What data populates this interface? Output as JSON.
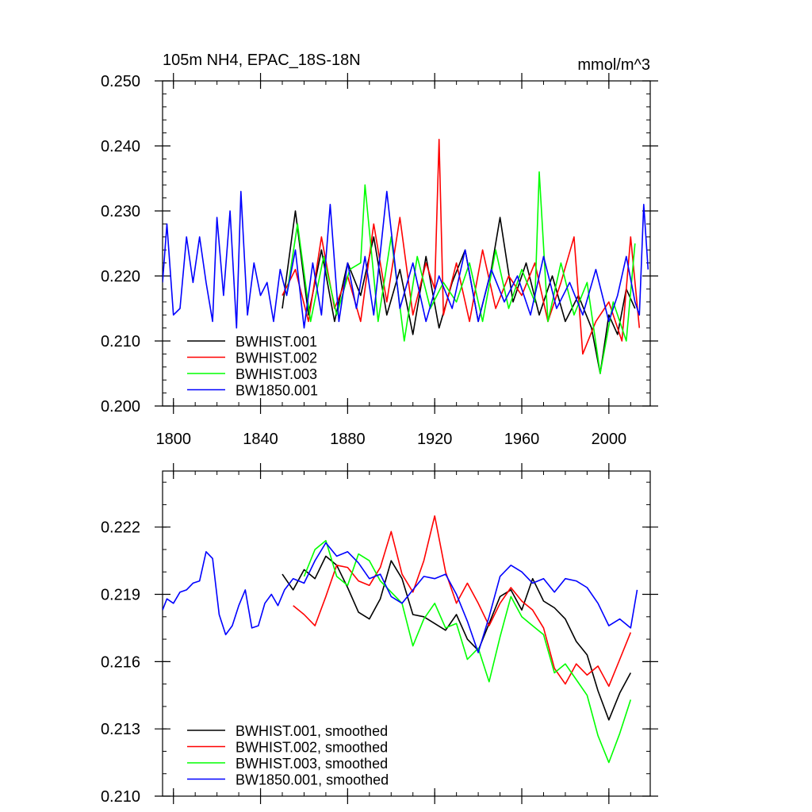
{
  "chart_data": [
    {
      "type": "line",
      "title": "105m NH4, EPAC_18S-18N",
      "units": "mmol/m^3",
      "xlabel": "",
      "ylabel": "",
      "xlim": [
        1795,
        2019
      ],
      "ylim": [
        0.2,
        0.25
      ],
      "xticks": [
        1800,
        1840,
        1880,
        1920,
        1960,
        2000
      ],
      "xtick_labels": [
        "1800",
        "1840",
        "1880",
        "1920",
        "1960",
        "2000"
      ],
      "yticks": [
        0.2,
        0.21,
        0.22,
        0.23,
        0.24,
        0.25
      ],
      "ytick_labels": [
        "0.200",
        "0.210",
        "0.220",
        "0.230",
        "0.240",
        "0.250"
      ],
      "legend_position": "bottom-left",
      "series": [
        {
          "name": "BWHIST.001",
          "color": "#000000",
          "x": [
            1850,
            1856,
            1862,
            1868,
            1874,
            1880,
            1886,
            1892,
            1898,
            1904,
            1910,
            1916,
            1922,
            1928,
            1934,
            1940,
            1946,
            1950,
            1956,
            1962,
            1968,
            1974,
            1980,
            1986,
            1992,
            1996,
            2000,
            2004,
            2008,
            2012
          ],
          "values": [
            0.215,
            0.23,
            0.214,
            0.224,
            0.213,
            0.222,
            0.217,
            0.226,
            0.214,
            0.221,
            0.211,
            0.223,
            0.212,
            0.219,
            0.224,
            0.213,
            0.221,
            0.229,
            0.216,
            0.222,
            0.214,
            0.22,
            0.213,
            0.217,
            0.212,
            0.205,
            0.214,
            0.211,
            0.218,
            0.215
          ]
        },
        {
          "name": "BWHIST.002",
          "color": "#ff0000",
          "x": [
            1850,
            1856,
            1862,
            1868,
            1874,
            1880,
            1886,
            1892,
            1898,
            1904,
            1910,
            1916,
            1920,
            1922,
            1924,
            1930,
            1936,
            1942,
            1948,
            1954,
            1960,
            1966,
            1972,
            1978,
            1984,
            1988,
            1994,
            2000,
            2006,
            2010,
            2014
          ],
          "values": [
            0.217,
            0.221,
            0.213,
            0.226,
            0.215,
            0.22,
            0.213,
            0.228,
            0.216,
            0.229,
            0.214,
            0.222,
            0.218,
            0.241,
            0.214,
            0.222,
            0.213,
            0.224,
            0.215,
            0.22,
            0.217,
            0.222,
            0.213,
            0.219,
            0.226,
            0.208,
            0.213,
            0.216,
            0.21,
            0.226,
            0.212
          ]
        },
        {
          "name": "BWHIST.003",
          "color": "#00ff00",
          "x": [
            1852,
            1857,
            1863,
            1869,
            1875,
            1881,
            1886,
            1888,
            1894,
            1900,
            1906,
            1912,
            1918,
            1924,
            1930,
            1936,
            1942,
            1948,
            1954,
            1960,
            1966,
            1968,
            1972,
            1978,
            1984,
            1990,
            1996,
            2002,
            2008,
            2012
          ],
          "values": [
            0.217,
            0.228,
            0.213,
            0.223,
            0.214,
            0.221,
            0.222,
            0.234,
            0.213,
            0.226,
            0.21,
            0.223,
            0.215,
            0.219,
            0.216,
            0.222,
            0.213,
            0.224,
            0.215,
            0.221,
            0.216,
            0.236,
            0.213,
            0.222,
            0.214,
            0.219,
            0.205,
            0.216,
            0.21,
            0.225
          ]
        },
        {
          "name": "BW1850.001",
          "color": "#0000ff",
          "x": [
            1795,
            1797,
            1800,
            1803,
            1806,
            1809,
            1812,
            1815,
            1818,
            1820,
            1823,
            1826,
            1829,
            1831,
            1834,
            1837,
            1840,
            1843,
            1846,
            1849,
            1852,
            1856,
            1860,
            1864,
            1868,
            1872,
            1876,
            1880,
            1884,
            1888,
            1892,
            1898,
            1904,
            1910,
            1916,
            1922,
            1928,
            1934,
            1940,
            1946,
            1952,
            1958,
            1964,
            1970,
            1976,
            1982,
            1988,
            1994,
            2000,
            2004,
            2008,
            2012,
            2014,
            2016,
            2018
          ],
          "values": [
            0.219,
            0.228,
            0.214,
            0.215,
            0.226,
            0.219,
            0.226,
            0.219,
            0.213,
            0.229,
            0.217,
            0.23,
            0.212,
            0.233,
            0.214,
            0.222,
            0.217,
            0.219,
            0.213,
            0.221,
            0.217,
            0.224,
            0.212,
            0.222,
            0.214,
            0.231,
            0.213,
            0.222,
            0.215,
            0.223,
            0.214,
            0.233,
            0.215,
            0.222,
            0.213,
            0.22,
            0.215,
            0.224,
            0.213,
            0.221,
            0.216,
            0.22,
            0.214,
            0.223,
            0.215,
            0.219,
            0.214,
            0.221,
            0.213,
            0.217,
            0.223,
            0.216,
            0.214,
            0.231,
            0.221
          ]
        }
      ]
    },
    {
      "type": "line",
      "title": "",
      "xlabel": "",
      "ylabel": "",
      "xlim": [
        1795,
        2019
      ],
      "ylim": [
        0.21,
        0.2245
      ],
      "xticks": [
        1800,
        1840,
        1880,
        1920,
        1960,
        2000
      ],
      "yticks": [
        0.21,
        0.213,
        0.216,
        0.219,
        0.222
      ],
      "ytick_labels": [
        "0.210",
        "0.213",
        "0.216",
        "0.219",
        "0.222"
      ],
      "legend_position": "bottom-left",
      "series": [
        {
          "name": "BWHIST.001, smoothed",
          "color": "#000000",
          "x": [
            1850,
            1855,
            1860,
            1865,
            1870,
            1875,
            1880,
            1885,
            1890,
            1895,
            1900,
            1905,
            1910,
            1915,
            1920,
            1925,
            1930,
            1935,
            1940,
            1945,
            1950,
            1955,
            1960,
            1965,
            1970,
            1975,
            1980,
            1985,
            1990,
            1995,
            2000,
            2005,
            2010
          ],
          "values": [
            0.2199,
            0.2192,
            0.2201,
            0.2197,
            0.2207,
            0.2203,
            0.2193,
            0.2182,
            0.2179,
            0.2188,
            0.2205,
            0.2197,
            0.2181,
            0.218,
            0.2177,
            0.2174,
            0.2181,
            0.217,
            0.2165,
            0.2177,
            0.2189,
            0.2192,
            0.2183,
            0.2197,
            0.2187,
            0.2184,
            0.2179,
            0.2169,
            0.2163,
            0.2147,
            0.2134,
            0.2146,
            0.2155
          ]
        },
        {
          "name": "BWHIST.002, smoothed",
          "color": "#ff0000",
          "x": [
            1855,
            1860,
            1865,
            1870,
            1875,
            1880,
            1885,
            1890,
            1895,
            1900,
            1905,
            1910,
            1915,
            1920,
            1925,
            1930,
            1935,
            1940,
            1945,
            1950,
            1955,
            1960,
            1965,
            1970,
            1975,
            1980,
            1985,
            1990,
            1995,
            2000,
            2005,
            2010
          ],
          "values": [
            0.2185,
            0.2181,
            0.2176,
            0.2189,
            0.2203,
            0.2202,
            0.2196,
            0.2194,
            0.2202,
            0.2218,
            0.2199,
            0.2191,
            0.2205,
            0.2225,
            0.22,
            0.2186,
            0.2195,
            0.2186,
            0.2176,
            0.2186,
            0.2193,
            0.2187,
            0.2183,
            0.2175,
            0.2157,
            0.215,
            0.2159,
            0.2154,
            0.2158,
            0.2149,
            0.2161,
            0.2173
          ]
        },
        {
          "name": "BWHIST.003, smoothed",
          "color": "#00ff00",
          "x": [
            1860,
            1865,
            1870,
            1875,
            1880,
            1885,
            1890,
            1895,
            1900,
            1905,
            1910,
            1915,
            1920,
            1925,
            1930,
            1935,
            1940,
            1945,
            1950,
            1955,
            1960,
            1965,
            1970,
            1975,
            1980,
            1985,
            1990,
            1995,
            2000,
            2005,
            2010
          ],
          "values": [
            0.2198,
            0.221,
            0.2214,
            0.2198,
            0.2194,
            0.2208,
            0.2205,
            0.2196,
            0.2191,
            0.2186,
            0.2167,
            0.2179,
            0.2186,
            0.2175,
            0.2177,
            0.2161,
            0.2166,
            0.2151,
            0.2171,
            0.2189,
            0.218,
            0.2176,
            0.2172,
            0.2155,
            0.2159,
            0.2152,
            0.2145,
            0.2127,
            0.2115,
            0.2128,
            0.2143
          ]
        },
        {
          "name": "BW1850.001, smoothed",
          "color": "#0000ff",
          "x": [
            1795,
            1797,
            1800,
            1803,
            1806,
            1809,
            1812,
            1815,
            1818,
            1821,
            1824,
            1827,
            1830,
            1833,
            1836,
            1839,
            1842,
            1845,
            1848,
            1851,
            1855,
            1860,
            1865,
            1870,
            1875,
            1880,
            1885,
            1890,
            1895,
            1900,
            1905,
            1910,
            1915,
            1920,
            1925,
            1930,
            1935,
            1940,
            1945,
            1950,
            1955,
            1960,
            1965,
            1970,
            1975,
            1980,
            1985,
            1990,
            1995,
            2000,
            2005,
            2010,
            2013
          ],
          "values": [
            0.2183,
            0.2188,
            0.2186,
            0.2191,
            0.2192,
            0.2195,
            0.2196,
            0.2209,
            0.2206,
            0.2181,
            0.2172,
            0.2176,
            0.2185,
            0.2192,
            0.2175,
            0.2176,
            0.2186,
            0.219,
            0.2185,
            0.2192,
            0.2197,
            0.2195,
            0.2205,
            0.2213,
            0.2207,
            0.2209,
            0.2204,
            0.2197,
            0.2199,
            0.2189,
            0.2186,
            0.2192,
            0.2198,
            0.2197,
            0.2199,
            0.219,
            0.2178,
            0.2164,
            0.218,
            0.2198,
            0.2203,
            0.22,
            0.2195,
            0.2197,
            0.2191,
            0.2197,
            0.2196,
            0.2193,
            0.2186,
            0.2176,
            0.2179,
            0.2175,
            0.2192
          ]
        }
      ]
    }
  ]
}
